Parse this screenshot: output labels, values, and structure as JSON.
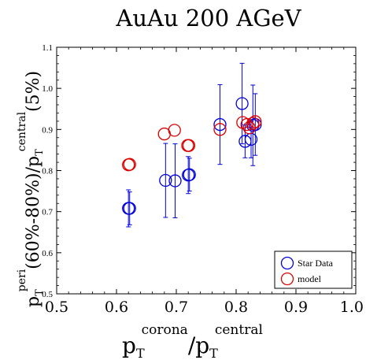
{
  "chart_data": {
    "type": "scatter",
    "title": "AuAu 200 AGeV",
    "xlabel": {
      "p": "p",
      "sub": "T",
      "sup": "corona",
      "slash": "/p",
      "sub2": "T",
      "sup2": "central"
    },
    "ylabel": {
      "p": "p",
      "sub": "T",
      "sup": "peri",
      "mid": "(60%-80%)/p",
      "sub2": "T",
      "sup2": "central",
      "tail": "(5%)"
    },
    "xlim": [
      0.5,
      1.0
    ],
    "ylim": [
      0.5,
      1.1
    ],
    "xticks": [
      "0.5",
      "0.6",
      "0.7",
      "0.8",
      "0.9",
      "1.0"
    ],
    "yticks": [
      "0.5",
      "0.6",
      "0.7",
      "0.8",
      "0.9",
      "1.0",
      "1.1"
    ],
    "legend_position": "bottom-right",
    "series": [
      {
        "name": "Star Data",
        "color": "#0000dd",
        "points": [
          {
            "x": 0.62,
            "y": 0.708,
            "err": 0.045
          },
          {
            "x": 0.622,
            "y": 0.708,
            "err": 0.04
          },
          {
            "x": 0.682,
            "y": 0.776,
            "err": 0.09
          },
          {
            "x": 0.698,
            "y": 0.775,
            "err": 0.09
          },
          {
            "x": 0.72,
            "y": 0.789,
            "err": 0.045
          },
          {
            "x": 0.722,
            "y": 0.79,
            "err": 0.04
          },
          {
            "x": 0.773,
            "y": 0.912,
            "err": 0.097
          },
          {
            "x": 0.81,
            "y": 0.963,
            "err": 0.098
          },
          {
            "x": 0.815,
            "y": 0.871,
            "err": 0.04
          },
          {
            "x": 0.825,
            "y": 0.876,
            "err": 0.045
          },
          {
            "x": 0.828,
            "y": 0.91,
            "err": 0.098
          },
          {
            "x": 0.832,
            "y": 0.912,
            "err": 0.075
          }
        ]
      },
      {
        "name": "model",
        "color": "#dd0000",
        "points": [
          {
            "x": 0.62,
            "y": 0.814
          },
          {
            "x": 0.622,
            "y": 0.815
          },
          {
            "x": 0.68,
            "y": 0.889
          },
          {
            "x": 0.697,
            "y": 0.898
          },
          {
            "x": 0.719,
            "y": 0.861
          },
          {
            "x": 0.721,
            "y": 0.861
          },
          {
            "x": 0.773,
            "y": 0.9
          },
          {
            "x": 0.811,
            "y": 0.917
          },
          {
            "x": 0.818,
            "y": 0.912
          },
          {
            "x": 0.822,
            "y": 0.904
          },
          {
            "x": 0.828,
            "y": 0.915
          },
          {
            "x": 0.832,
            "y": 0.919
          }
        ]
      }
    ]
  }
}
